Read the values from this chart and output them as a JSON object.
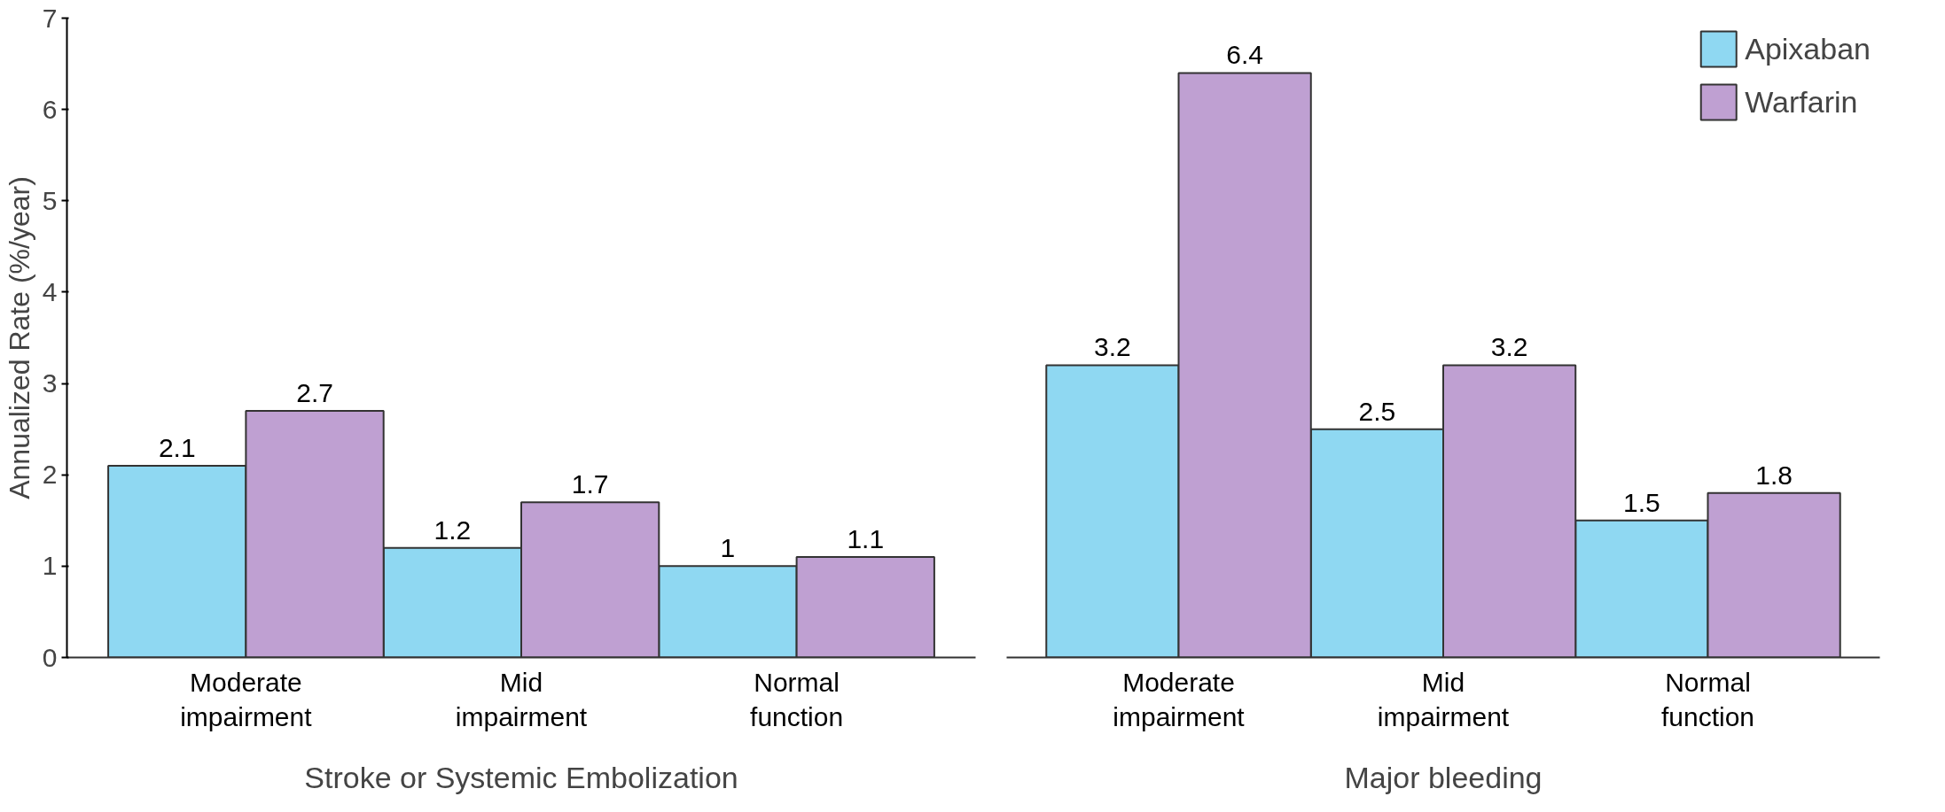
{
  "chart_data": [
    {
      "type": "bar",
      "xlabel": "Stroke or Systemic Embolization",
      "ylabel": "Annualized Rate (%/year)",
      "categories": [
        "Moderate impairment",
        "Mid impairment",
        "Normal function"
      ],
      "series": [
        {
          "color": "#8fd8f2",
          "values": [
            2.1,
            1.2,
            1
          ]
        },
        {
          "color": "#bfa0d2",
          "values": [
            2.7,
            1.7,
            1.1
          ]
        }
      ],
      "ylim": [
        0,
        7
      ],
      "yticks": [
        0,
        1,
        2,
        3,
        4,
        5,
        6,
        7
      ],
      "grid": false,
      "legend": false,
      "data_labels": true
    },
    {
      "type": "bar",
      "xlabel": "Major bleeding",
      "categories": [
        "Moderate impairment",
        "Mid impairment",
        "Normal function"
      ],
      "series": [
        {
          "name": "Apixaban",
          "color": "#8fd8f2",
          "values": [
            3.2,
            2.5,
            1.5
          ]
        },
        {
          "name": "Warfarin",
          "color": "#bfa0d2",
          "values": [
            6.4,
            3.2,
            1.8
          ]
        }
      ],
      "ylim": [
        0,
        7
      ],
      "yticks": [
        0,
        1,
        2,
        3,
        4,
        5,
        6,
        7
      ],
      "grid": false,
      "legend": "top right",
      "data_labels": true,
      "tick_labels": "x"
    }
  ]
}
